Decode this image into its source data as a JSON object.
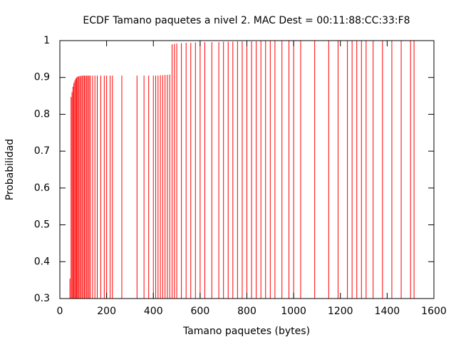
{
  "chart_data": {
    "type": "impulse",
    "title": "ECDF Tamano paquetes a nivel 2. MAC Dest = 00:11:88:CC:33:F8",
    "x_label": "Tamano paquetes (bytes)",
    "y_label": "Probabilidad",
    "color": "#ff0000",
    "x": [
      43,
      48,
      52,
      56,
      60,
      64,
      68,
      72,
      76,
      80,
      85,
      90,
      95,
      100,
      105,
      110,
      115,
      120,
      125,
      130,
      140,
      150,
      160,
      175,
      190,
      200,
      215,
      225,
      265,
      330,
      360,
      380,
      400,
      410,
      420,
      430,
      440,
      450,
      460,
      470,
      480,
      490,
      500,
      520,
      540,
      560,
      580,
      600,
      620,
      650,
      680,
      700,
      720,
      740,
      760,
      780,
      800,
      820,
      840,
      860,
      880,
      900,
      920,
      950,
      980,
      1000,
      1030,
      1090,
      1150,
      1190,
      1230,
      1250,
      1270,
      1290,
      1310,
      1340,
      1380,
      1420,
      1460,
      1500,
      1515
    ],
    "values": [
      0.354,
      0.847,
      0.86,
      0.875,
      0.885,
      0.892,
      0.897,
      0.9,
      0.902,
      0.903,
      0.904,
      0.904,
      0.905,
      0.905,
      0.905,
      0.905,
      0.905,
      0.905,
      0.905,
      0.905,
      0.905,
      0.905,
      0.905,
      0.905,
      0.905,
      0.905,
      0.905,
      0.905,
      0.905,
      0.905,
      0.905,
      0.905,
      0.905,
      0.905,
      0.905,
      0.906,
      0.906,
      0.907,
      0.907,
      0.908,
      0.99,
      0.991,
      0.992,
      0.993,
      0.994,
      0.994,
      0.995,
      0.995,
      0.996,
      0.996,
      0.996,
      0.997,
      0.997,
      0.997,
      0.998,
      0.998,
      0.998,
      0.998,
      0.998,
      0.999,
      0.999,
      0.999,
      0.999,
      0.999,
      0.999,
      0.999,
      0.999,
      0.999,
      0.999,
      0.999,
      0.999,
      0.999,
      0.999,
      0.999,
      0.999,
      0.999,
      0.999,
      0.999,
      0.999,
      1,
      1
    ],
    "xlim": [
      0,
      1600
    ],
    "xticks": [
      0,
      200,
      400,
      600,
      800,
      1000,
      1200,
      1400,
      1600
    ],
    "ylim": [
      0.3,
      1
    ],
    "yticks": [
      0.3,
      0.4,
      0.5,
      0.6,
      0.7,
      0.8,
      0.9,
      1
    ]
  }
}
